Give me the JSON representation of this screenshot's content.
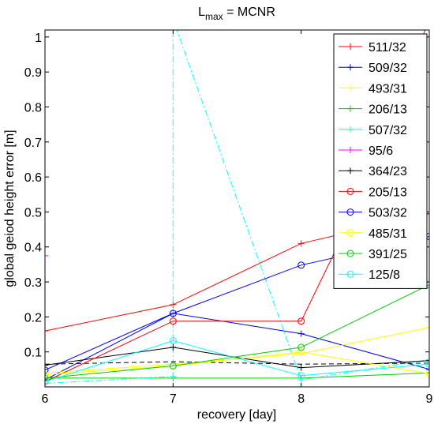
{
  "chart_data": {
    "type": "line",
    "title_main": "L",
    "title_sub": "max",
    "title_rest": " = MCNR",
    "xlabel": "recovery [day]",
    "ylabel": "global geiod height error [m]",
    "xlim": [
      6,
      9
    ],
    "ylim": [
      0,
      1.02
    ],
    "x_ticks": [
      6,
      7,
      8,
      9
    ],
    "y_ticks": [
      0.1,
      0.2,
      0.3,
      0.4,
      0.5,
      0.6,
      0.7,
      0.8,
      0.9,
      1
    ],
    "y_tick_labels": [
      "0.1",
      "0.2",
      "0.3",
      "0.4",
      "0.5",
      "0.6",
      "0.7",
      "0.8",
      "0.9",
      "1"
    ],
    "grid": false,
    "legend_position": "top-right",
    "series": [
      {
        "name": "511/32",
        "color": "#ff0000",
        "marker": "plus",
        "dash": "solid",
        "x": [
          6,
          7,
          8,
          9
        ],
        "y": [
          0.16,
          0.235,
          0.41,
          0.495
        ]
      },
      {
        "name": "509/32",
        "color": "#0000ff",
        "marker": "plus",
        "dash": "solid",
        "x": [
          6,
          7,
          8,
          9
        ],
        "y": [
          0.02,
          0.21,
          0.152,
          0.05
        ]
      },
      {
        "name": "493/31",
        "color": "#ffff00",
        "marker": "plus",
        "dash": "solid",
        "x": [
          6,
          7,
          8,
          9
        ],
        "y": [
          0.04,
          0.065,
          0.095,
          0.17
        ]
      },
      {
        "name": "206/13",
        "color": "#00cc00",
        "marker": "plus",
        "dash": "solid",
        "x": [
          6,
          7,
          8,
          9
        ],
        "y": [
          0.025,
          0.025,
          0.025,
          0.04
        ]
      },
      {
        "name": "507/32",
        "color": "#00ffff",
        "marker": "plus",
        "dash": "dashdot",
        "x": [
          6,
          7,
          7,
          8,
          9
        ],
        "y": [
          0.01,
          0.03,
          1.05,
          0.02,
          0.078
        ]
      },
      {
        "name": "95/6",
        "color": "#ff00ff",
        "marker": "plus",
        "dash": "solid",
        "x": [
          6,
          6
        ],
        "y": [
          0.375,
          1.05
        ]
      },
      {
        "name": "364/23",
        "color": "#000000",
        "marker": "plus",
        "dash": "solid",
        "x": [
          6,
          7,
          8,
          9
        ],
        "y": [
          0.062,
          0.113,
          0.055,
          0.075
        ]
      },
      {
        "name": "364/23",
        "color": "#000000",
        "marker": "none",
        "dash": "dashed",
        "x": [
          6,
          7,
          8,
          9
        ],
        "y": [
          0.065,
          0.072,
          0.065,
          0.068
        ]
      },
      {
        "name": "205/13",
        "color": "#ff0000",
        "marker": "circle",
        "dash": "solid",
        "x": [
          6,
          7,
          8,
          8.4,
          9
        ],
        "y": [
          0.015,
          0.188,
          0.188,
          0.49,
          1.05
        ]
      },
      {
        "name": "503/32",
        "color": "#0000ff",
        "marker": "circle",
        "dash": "solid",
        "x": [
          6,
          7,
          8,
          9
        ],
        "y": [
          0.048,
          0.21,
          0.348,
          0.43
        ]
      },
      {
        "name": "485/31",
        "color": "#ffff00",
        "marker": "circle",
        "dash": "solid",
        "x": [
          6,
          7,
          8,
          9
        ],
        "y": [
          0.035,
          0.06,
          0.1,
          0.038
        ]
      },
      {
        "name": "391/25",
        "color": "#00cc00",
        "marker": "circle",
        "dash": "solid",
        "x": [
          6,
          7,
          8,
          9
        ],
        "y": [
          0.025,
          0.06,
          0.113,
          0.292
        ]
      },
      {
        "name": "125/8",
        "color": "#00ffff",
        "marker": "circle",
        "dash": "solid",
        "x": [
          6,
          7,
          8,
          9
        ],
        "y": [
          0.015,
          0.132,
          0.032,
          0.065
        ]
      }
    ]
  }
}
